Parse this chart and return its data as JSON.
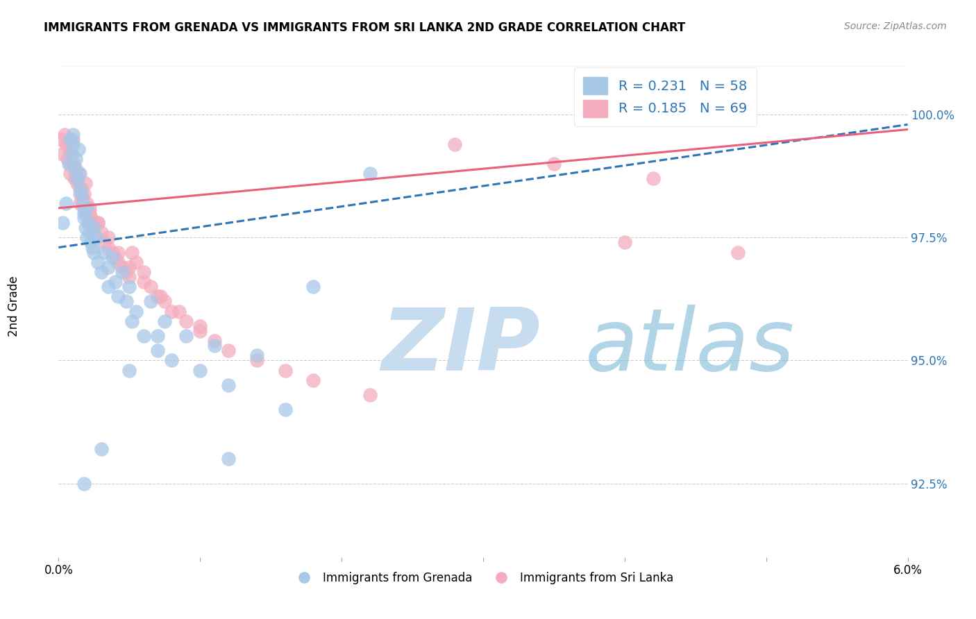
{
  "title": "IMMIGRANTS FROM GRENADA VS IMMIGRANTS FROM SRI LANKA 2ND GRADE CORRELATION CHART",
  "source": "Source: ZipAtlas.com",
  "ylabel": "2nd Grade",
  "color_grenada": "#A8C8E8",
  "color_srilanka": "#F4ACBE",
  "line_color_grenada": "#2E75B6",
  "line_color_srilanka": "#E8607A",
  "watermark_zip_color": "#C8DCF0",
  "watermark_atlas_color": "#7EB8D8",
  "grenada_x": [
    0.03,
    0.05,
    0.07,
    0.08,
    0.09,
    0.1,
    0.1,
    0.11,
    0.12,
    0.13,
    0.14,
    0.15,
    0.15,
    0.16,
    0.17,
    0.18,
    0.18,
    0.19,
    0.2,
    0.2,
    0.21,
    0.22,
    0.23,
    0.24,
    0.25,
    0.25,
    0.27,
    0.28,
    0.3,
    0.32,
    0.35,
    0.35,
    0.38,
    0.4,
    0.42,
    0.45,
    0.48,
    0.5,
    0.52,
    0.55,
    0.6,
    0.65,
    0.7,
    0.75,
    0.8,
    0.9,
    1.0,
    1.1,
    1.2,
    1.4,
    1.6,
    1.8,
    2.2,
    0.18,
    0.3,
    0.5,
    0.7,
    1.2
  ],
  "grenada_y": [
    97.8,
    98.2,
    99.0,
    99.5,
    99.2,
    99.6,
    99.4,
    98.9,
    99.1,
    98.7,
    99.3,
    98.5,
    98.8,
    98.4,
    98.2,
    98.0,
    97.9,
    97.7,
    98.1,
    97.5,
    97.8,
    97.6,
    97.4,
    97.3,
    97.7,
    97.2,
    97.5,
    97.0,
    96.8,
    97.2,
    96.9,
    96.5,
    97.1,
    96.6,
    96.3,
    96.8,
    96.2,
    96.5,
    95.8,
    96.0,
    95.5,
    96.2,
    95.2,
    95.8,
    95.0,
    95.5,
    94.8,
    95.3,
    94.5,
    95.1,
    94.0,
    96.5,
    98.8,
    92.5,
    93.2,
    94.8,
    95.5,
    93.0
  ],
  "srilanka_x": [
    0.02,
    0.03,
    0.04,
    0.05,
    0.06,
    0.07,
    0.08,
    0.08,
    0.09,
    0.1,
    0.1,
    0.11,
    0.12,
    0.13,
    0.14,
    0.15,
    0.15,
    0.16,
    0.17,
    0.18,
    0.19,
    0.2,
    0.2,
    0.21,
    0.22,
    0.23,
    0.25,
    0.26,
    0.28,
    0.3,
    0.32,
    0.35,
    0.38,
    0.4,
    0.42,
    0.45,
    0.48,
    0.5,
    0.52,
    0.55,
    0.6,
    0.65,
    0.7,
    0.75,
    0.8,
    0.9,
    1.0,
    1.1,
    1.2,
    1.4,
    1.6,
    1.8,
    2.2,
    2.8,
    3.5,
    4.2,
    0.12,
    0.18,
    0.22,
    0.28,
    0.35,
    0.42,
    0.5,
    0.6,
    0.72,
    0.85,
    1.0,
    4.0,
    4.8
  ],
  "srilanka_y": [
    99.5,
    99.2,
    99.6,
    99.4,
    99.1,
    99.3,
    99.0,
    98.8,
    99.2,
    99.5,
    99.0,
    98.7,
    98.9,
    98.6,
    98.8,
    98.4,
    98.2,
    98.5,
    98.3,
    98.1,
    98.6,
    98.2,
    98.0,
    97.8,
    98.0,
    97.9,
    97.7,
    97.5,
    97.8,
    97.6,
    97.4,
    97.3,
    97.2,
    97.1,
    97.0,
    96.9,
    96.8,
    96.7,
    97.2,
    97.0,
    96.8,
    96.5,
    96.3,
    96.2,
    96.0,
    95.8,
    95.6,
    95.4,
    95.2,
    95.0,
    94.8,
    94.6,
    94.3,
    99.4,
    99.0,
    98.7,
    98.7,
    98.4,
    98.1,
    97.8,
    97.5,
    97.2,
    96.9,
    96.6,
    96.3,
    96.0,
    95.7,
    97.4,
    97.2
  ],
  "grenada_line_x": [
    0.0,
    6.0
  ],
  "grenada_line_y": [
    97.3,
    99.8
  ],
  "srilanka_line_x": [
    0.0,
    6.0
  ],
  "srilanka_line_y": [
    98.1,
    99.7
  ],
  "xlim": [
    0.0,
    6.0
  ],
  "ylim": [
    91.0,
    101.2
  ],
  "yticks": [
    92.5,
    95.0,
    97.5,
    100.0
  ],
  "ytick_labels": [
    "92.5%",
    "95.0%",
    "97.5%",
    "100.0%"
  ]
}
